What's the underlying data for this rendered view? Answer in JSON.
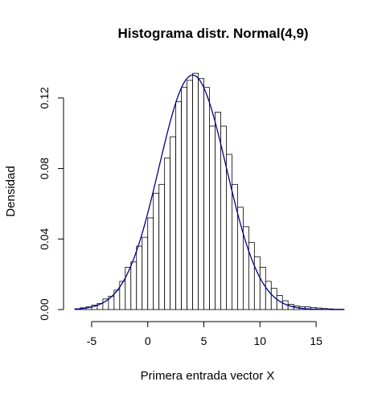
{
  "chart_data": {
    "type": "histogram",
    "title": "Histograma distr. Normal(4,9)",
    "xlabel": "Primera entrada vector X",
    "ylabel": "Densidad",
    "xlim": [
      -6.5,
      17.5
    ],
    "ylim": [
      0,
      0.14
    ],
    "x_ticks": [
      -5,
      0,
      5,
      10,
      15
    ],
    "x_tick_labels": [
      "-5",
      "0",
      "5",
      "10",
      "15"
    ],
    "y_ticks": [
      0.0,
      0.04,
      0.08,
      0.12
    ],
    "y_tick_labels": [
      "0.00",
      "0.04",
      "0.08",
      "0.12"
    ],
    "bin_width": 0.5,
    "bins_start": [
      -6.5,
      -6.0,
      -5.5,
      -5.0,
      -4.5,
      -4.0,
      -3.5,
      -3.0,
      -2.5,
      -2.0,
      -1.5,
      -1.0,
      -0.5,
      0.0,
      0.5,
      1.0,
      1.5,
      2.0,
      2.5,
      3.0,
      3.5,
      4.0,
      4.5,
      5.0,
      5.5,
      6.0,
      6.5,
      7.0,
      7.5,
      8.0,
      8.5,
      9.0,
      9.5,
      10.0,
      10.5,
      11.0,
      11.5,
      12.0,
      12.5,
      13.0,
      13.5,
      14.0,
      14.5,
      15.0,
      15.5,
      16.0,
      16.5,
      17.0
    ],
    "density": [
      0.0005,
      0.001,
      0.0015,
      0.0025,
      0.0035,
      0.006,
      0.0075,
      0.011,
      0.016,
      0.024,
      0.027,
      0.036,
      0.041,
      0.052,
      0.066,
      0.071,
      0.086,
      0.098,
      0.118,
      0.126,
      0.13,
      0.134,
      0.131,
      0.126,
      0.104,
      0.112,
      0.104,
      0.088,
      0.071,
      0.058,
      0.047,
      0.038,
      0.03,
      0.024,
      0.016,
      0.012,
      0.008,
      0.005,
      0.003,
      0.002,
      0.0017,
      0.0015,
      0.0012,
      0.0009,
      0.0006,
      0.0004,
      0.0002,
      0.0002
    ],
    "bar_fill": "#ffffff",
    "bar_stroke": "#000000",
    "curve": {
      "type": "normal-density",
      "mean": 4,
      "sd": 3,
      "color": "#00008b"
    },
    "grid": false,
    "legend": "none"
  }
}
